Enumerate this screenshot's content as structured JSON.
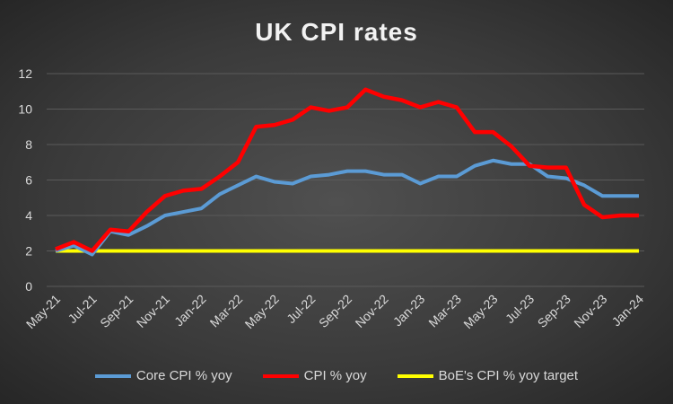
{
  "chart_data": {
    "type": "line",
    "title": "UK CPI rates",
    "xlabel": "",
    "ylabel": "",
    "ylim": [
      0,
      12
    ],
    "yticks": [
      "0",
      "2",
      "4",
      "6",
      "8",
      "10",
      "12"
    ],
    "x": [
      "May-21",
      "Jun-21",
      "Jul-21",
      "Aug-21",
      "Sep-21",
      "Oct-21",
      "Nov-21",
      "Dec-21",
      "Jan-22",
      "Feb-22",
      "Mar-22",
      "Apr-22",
      "May-22",
      "Jun-22",
      "Jul-22",
      "Aug-22",
      "Sep-22",
      "Oct-22",
      "Nov-22",
      "Dec-22",
      "Jan-23",
      "Feb-23",
      "Mar-23",
      "Apr-23",
      "May-23",
      "Jun-23",
      "Jul-23",
      "Aug-23",
      "Sep-23",
      "Oct-23",
      "Nov-23",
      "Dec-23",
      "Jan-24"
    ],
    "xticks_shown": [
      "May-21",
      "Jul-21",
      "Sep-21",
      "Nov-21",
      "Jan-22",
      "Mar-22",
      "May-22",
      "Jul-22",
      "Sep-22",
      "Nov-22",
      "Jan-23",
      "Mar-23",
      "May-23",
      "Jul-23",
      "Sep-23",
      "Nov-23",
      "Jan-24"
    ],
    "grid": true,
    "legend_position": "bottom",
    "series": [
      {
        "name": "Core CPI % yoy",
        "color": "#5b9bd5",
        "values": [
          2.0,
          2.3,
          1.8,
          3.1,
          2.9,
          3.4,
          4.0,
          4.2,
          4.4,
          5.2,
          5.7,
          6.2,
          5.9,
          5.8,
          6.2,
          6.3,
          6.5,
          6.5,
          6.3,
          6.3,
          5.8,
          6.2,
          6.2,
          6.8,
          7.1,
          6.9,
          6.9,
          6.2,
          6.1,
          5.7,
          5.1,
          5.1,
          5.1
        ]
      },
      {
        "name": "CPI % yoy",
        "color": "#ff0000",
        "values": [
          2.1,
          2.5,
          2.0,
          3.2,
          3.1,
          4.2,
          5.1,
          5.4,
          5.5,
          6.2,
          7.0,
          9.0,
          9.1,
          9.4,
          10.1,
          9.9,
          10.1,
          11.1,
          10.7,
          10.5,
          10.1,
          10.4,
          10.1,
          8.7,
          8.7,
          7.9,
          6.8,
          6.7,
          6.7,
          4.6,
          3.9,
          4.0,
          4.0
        ]
      },
      {
        "name": "BoE's CPI % yoy target",
        "color": "#ffff00",
        "values": [
          2,
          2,
          2,
          2,
          2,
          2,
          2,
          2,
          2,
          2,
          2,
          2,
          2,
          2,
          2,
          2,
          2,
          2,
          2,
          2,
          2,
          2,
          2,
          2,
          2,
          2,
          2,
          2,
          2,
          2,
          2,
          2,
          2
        ]
      }
    ]
  }
}
